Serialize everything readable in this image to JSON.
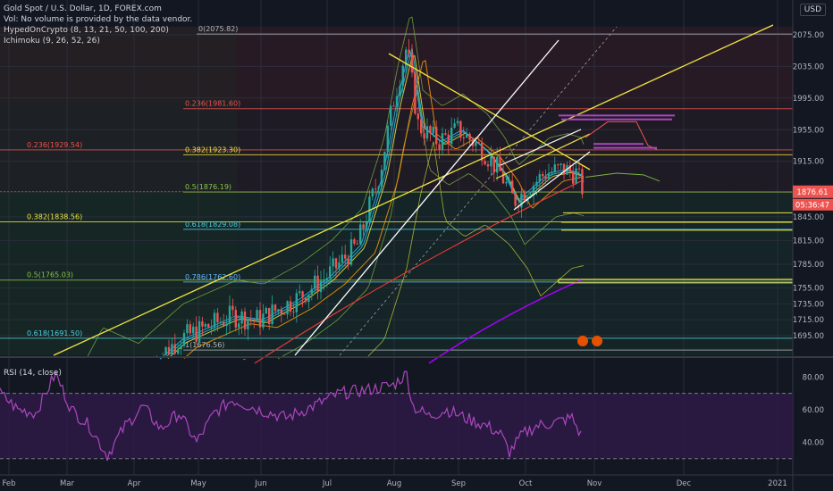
{
  "header": {
    "title": "Gold Spot / U.S. Dollar, 1D, FOREX.com",
    "vol_note": "Vol: No volume is provided by the data vendor.",
    "indicator": "HypedOnCrypto (8, 13, 21, 50, 100, 200)",
    "ichimoku": "Ichimoku (9, 26, 52, 26)",
    "currency": "USD"
  },
  "rsi": {
    "label": "RSI (14, close)",
    "levels": [
      80,
      60,
      40
    ],
    "bands": [
      70,
      30
    ]
  },
  "colors": {
    "background": "#131722",
    "grid": "#2a2e39",
    "axis_text": "#b2b5be",
    "up": "#26a69a",
    "down": "#ef5350",
    "yellow": "#f0e442",
    "white": "#ffffff",
    "purple": "#9c27b0",
    "price_tag": "#ef5350",
    "rsi_line": "#ab47bc",
    "rsi_band": "#2e1a47"
  },
  "chart_data": {
    "type": "candlestick",
    "x_ticks": [
      "Feb",
      "Mar",
      "Apr",
      "May",
      "Jun",
      "Jul",
      "Aug",
      "Sep",
      "Oct",
      "Nov",
      "Dec",
      "2021"
    ],
    "y_ticks": [
      2075,
      2035,
      1995,
      1955,
      1915,
      1876.61,
      1845,
      1815,
      1785,
      1755,
      1735,
      1715,
      1695
    ],
    "y_range": [
      1670,
      2085
    ],
    "last_price": "1876.61",
    "countdown": "05:36:47",
    "fib_levels": [
      {
        "label": "0(2075.82)",
        "price": 2075.82,
        "color": "#b2b5be"
      },
      {
        "label": "0.236(1981.60)",
        "price": 1981.6,
        "color": "#ef5350"
      },
      {
        "label": "0.236(1929.54)",
        "price": 1929.54,
        "color": "#ef5350"
      },
      {
        "label": "0.382(1923.30)",
        "price": 1923.3,
        "color": "#f0e442"
      },
      {
        "label": "0.5(1876.19)",
        "price": 1876.19,
        "color": "#8bc34a"
      },
      {
        "label": "0.382(1838.56)",
        "price": 1838.56,
        "color": "#f0e442"
      },
      {
        "label": "0.618(1829.08)",
        "price": 1829.08,
        "color": "#4dd0e1"
      },
      {
        "label": "0.5(1765.03)",
        "price": 1765.03,
        "color": "#8bc34a"
      },
      {
        "label": "0.786(1762.60)",
        "price": 1762.6,
        "color": "#64b5f6"
      },
      {
        "label": "0.618(1691.50)",
        "price": 1691.5,
        "color": "#4dd0e1"
      },
      {
        "label": "1(1676.56)",
        "price": 1676.56,
        "color": "#b2b5be"
      }
    ],
    "rsi_ylim": [
      20,
      90
    ],
    "rsi_y_ticks": [
      80.0,
      60.0,
      40.0
    ]
  }
}
